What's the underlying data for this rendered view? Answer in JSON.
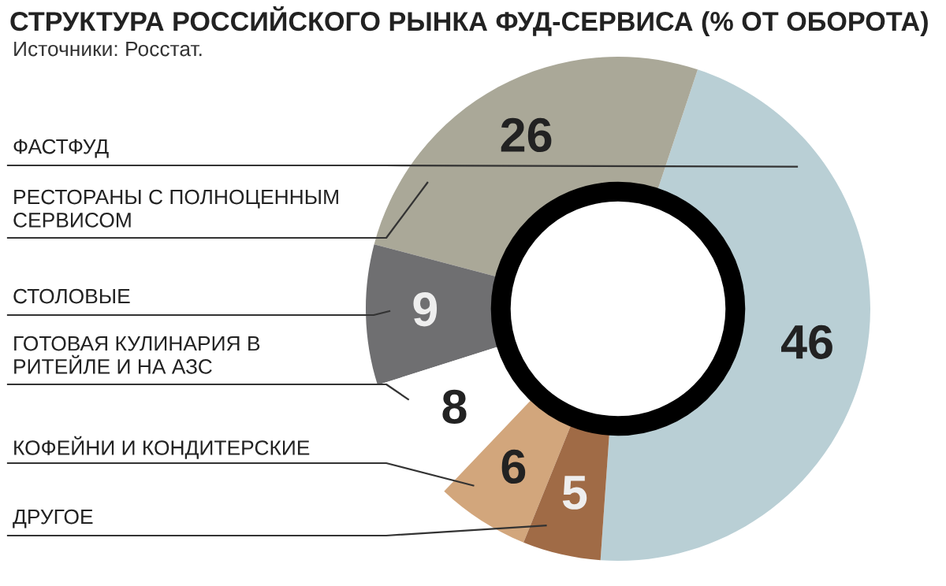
{
  "chart_data": {
    "type": "donut",
    "title": "СТРУКТУРА РОССИЙСКОГО РЫНКА ФУД-СЕРВИСА (% ОТ ОБОРОТА)",
    "subtitle": "Источники: Росстат.",
    "categories": [
      "ФАСТФУД",
      "РЕСТОРАНЫ С ПОЛНОЦЕННЫМ СЕРВИСОМ",
      "СТОЛОВЫЕ",
      "ГОТОВАЯ КУЛИНАРИЯ В РИТЕЙЛЕ И НА АЗС",
      "КОФЕЙНИ И КОНДИТЕРСКИЕ",
      "ДРУГОЕ"
    ],
    "values": [
      46,
      26,
      9,
      8,
      6,
      5
    ],
    "colors": [
      "#b9cfd5",
      "#aaa898",
      "#6f6f71",
      "#ffffff",
      "#d2a67c",
      "#a06b46"
    ],
    "data_labels": true
  }
}
